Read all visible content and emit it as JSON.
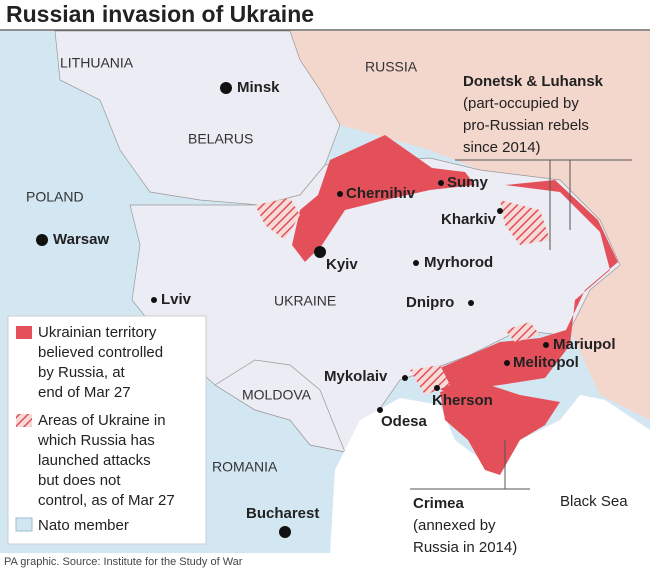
{
  "title": "Russian invasion of Ukraine",
  "countries": [
    "LITHUANIA",
    "RUSSIA",
    "BELARUS",
    "POLAND",
    "UKRAINE",
    "MOLDOVA",
    "ROMANIA"
  ],
  "cities": [
    "Minsk",
    "Warsaw",
    "Chernihiv",
    "Sumy",
    "Kharkiv",
    "Kyiv",
    "Myrhorod",
    "Lviv",
    "Dnipro",
    "Mariupol",
    "Melitopol",
    "Mykolaiv",
    "Kherson",
    "Odesa",
    "Bucharest"
  ],
  "sea": "Black Sea",
  "callouts": [
    {
      "title": "Donetsk & Luhansk",
      "text": [
        "(part-occupied by",
        "pro-Russian rebels",
        "since 2014)"
      ]
    },
    {
      "title": "Crimea",
      "text": [
        "(annexed by",
        "Russia in 2014)"
      ]
    }
  ],
  "legend": [
    {
      "label": [
        "Ukrainian territory",
        "believed controlled",
        "by Russia, at",
        "end of Mar 27"
      ]
    },
    {
      "label": [
        "Areas of Ukraine in",
        "which Russia has",
        "launched attacks",
        "but does not",
        "control, as of Mar 27"
      ]
    },
    {
      "label": [
        "Nato member"
      ]
    }
  ],
  "source": "PA graphic. Source: Institute for the Study of War"
}
